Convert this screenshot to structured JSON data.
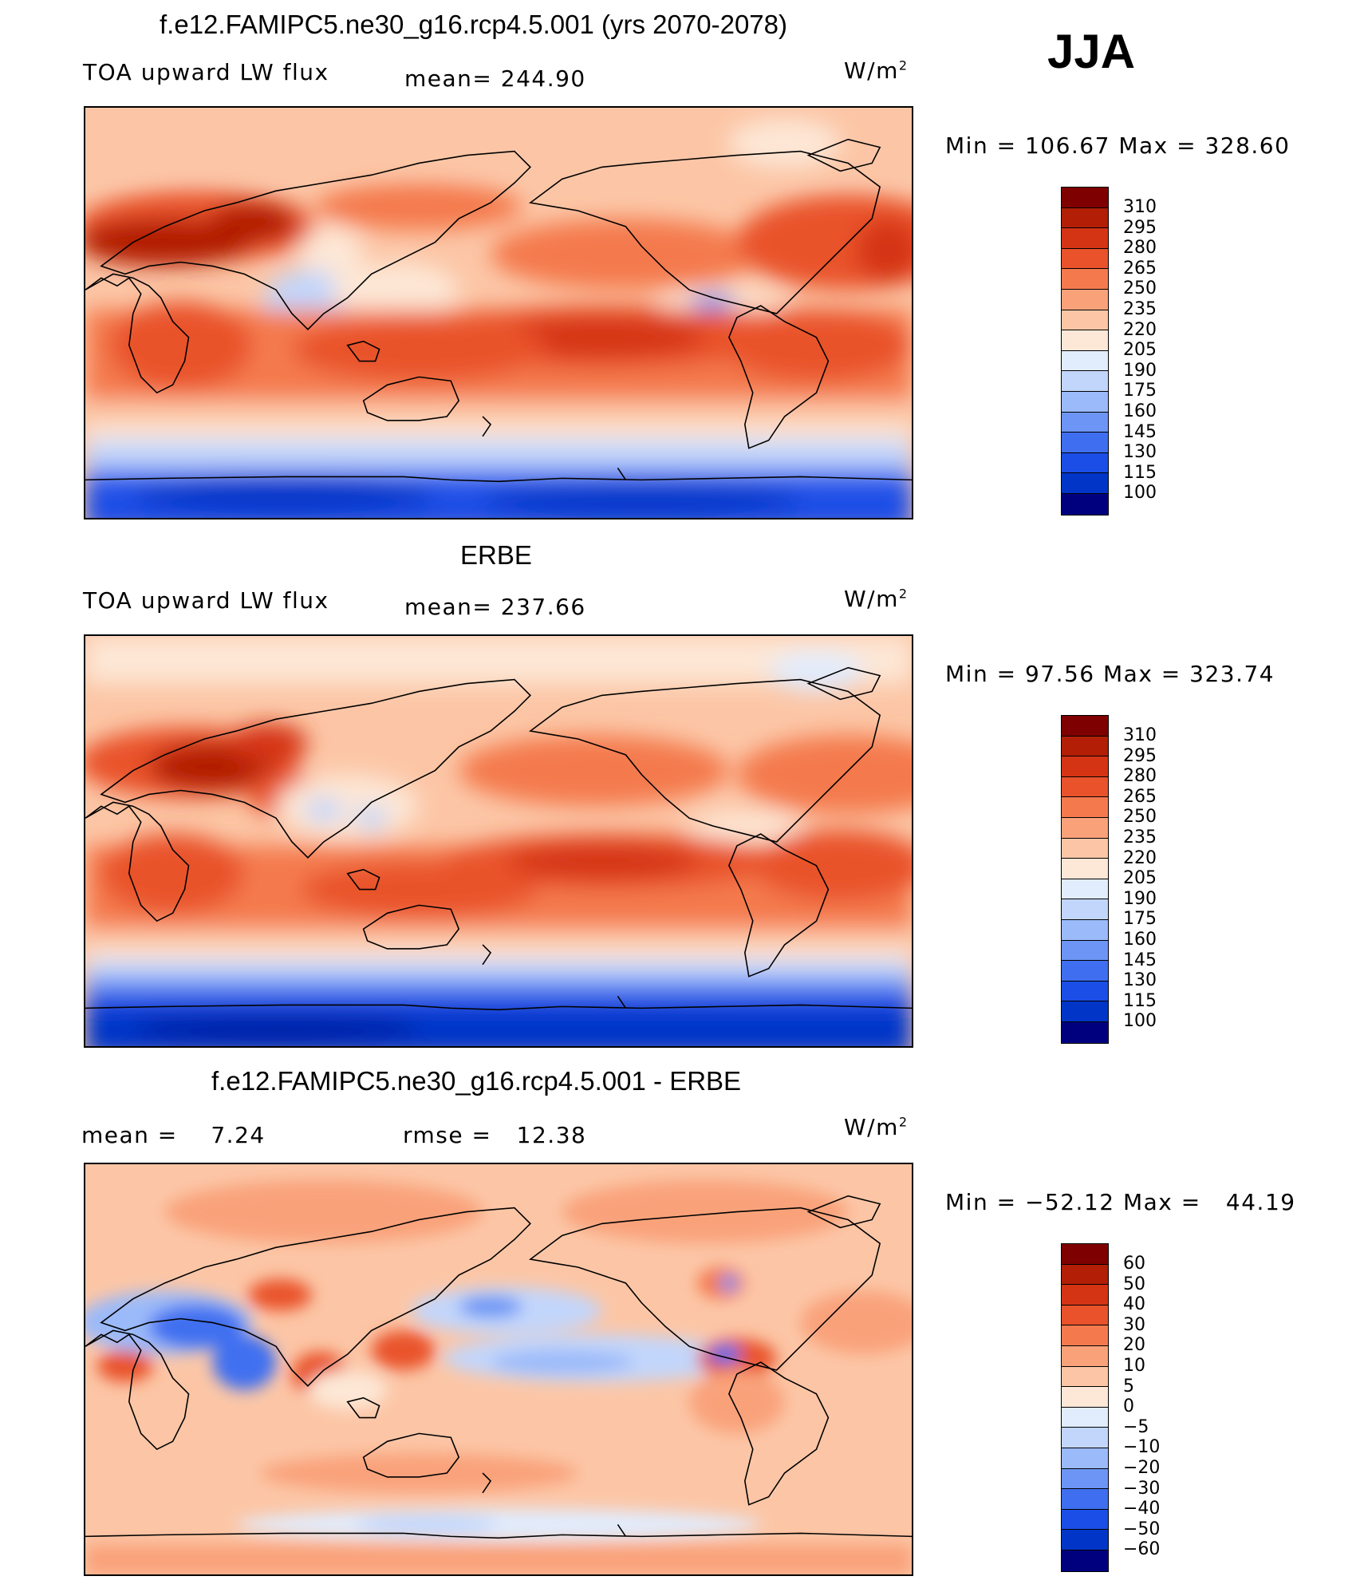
{
  "season": "JJA",
  "colors": {
    "abs_scale": [
      "#00007f",
      "#0020a8",
      "#0035c8",
      "#1a4ee6",
      "#3f6ff0",
      "#6c95f5",
      "#9bbaf9",
      "#c2d6fb",
      "#e1ecfd",
      "#fde7d6",
      "#fcc6a6",
      "#f9a27a",
      "#f47a4e",
      "#e9522b",
      "#d53414",
      "#b21e06",
      "#7f0000"
    ],
    "diff_scale": [
      "#00007f",
      "#0020a8",
      "#0035c8",
      "#1a4ee6",
      "#3f6ff0",
      "#6c95f5",
      "#9bbaf9",
      "#c2d6fb",
      "#e1ecfd",
      "#fde7d6",
      "#fcc6a6",
      "#f9a27a",
      "#f47a4e",
      "#e9522b",
      "#d53414",
      "#b21e06",
      "#7f0000"
    ]
  },
  "panels": [
    {
      "title": "f.e12.FAMIPC5.ne30_g16.rcp4.5.001 (yrs 2070-2078)",
      "left_label": "TOA upward LW flux",
      "mean_label": "mean= 244.90",
      "units_base": "W/m",
      "units_exp": "2",
      "minmax": "Min =  106.67 Max =  328.60",
      "colorbar_labels": [
        "310",
        "295",
        "280",
        "265",
        "250",
        "235",
        "220",
        "205",
        "190",
        "175",
        "160",
        "145",
        "130",
        "115",
        "100"
      ]
    },
    {
      "title": "ERBE",
      "left_label": "TOA upward LW flux",
      "mean_label": "mean= 237.66",
      "units_base": "W/m",
      "units_exp": "2",
      "minmax": "Min =   97.56 Max =  323.74",
      "colorbar_labels": [
        "310",
        "295",
        "280",
        "265",
        "250",
        "235",
        "220",
        "205",
        "190",
        "175",
        "160",
        "145",
        "130",
        "115",
        "100"
      ]
    },
    {
      "title": "f.e12.FAMIPC5.ne30_g16.rcp4.5.001 - ERBE",
      "left_label": "mean =    7.24",
      "mean_label": "rmse =   12.38",
      "units_base": "W/m",
      "units_exp": "2",
      "minmax": "Min = −52.12 Max =   44.19",
      "colorbar_labels": [
        "60",
        "50",
        "40",
        "30",
        "20",
        "10",
        "5",
        "0",
        "−5",
        "−10",
        "−20",
        "−30",
        "−40",
        "−50",
        "−60"
      ]
    }
  ]
}
